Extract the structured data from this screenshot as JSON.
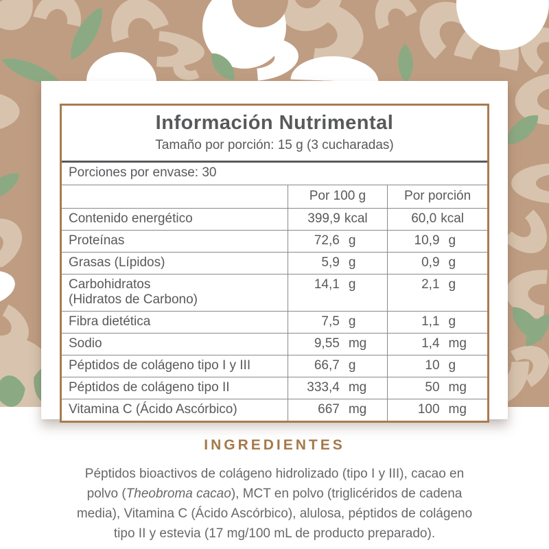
{
  "colors": {
    "background_tan": "#bf9d82",
    "shape_light_tan": "#d8c4ae",
    "shape_white": "#ffffff",
    "shape_green": "#8baa84",
    "table_border_brown": "#a87b4e",
    "heading_brown": "#a5794a",
    "text_gray": "#58595b",
    "line_gray": "#87898c",
    "card_white": "#ffffff"
  },
  "table": {
    "title": "Información Nutrimental",
    "serving_size": "Tamaño por porción: 15 g (3 cucharadas)",
    "servings_per_container": "Porciones por envase: 30",
    "columns": [
      "Por 100 g",
      "Por porción"
    ],
    "rows": [
      {
        "label": "Contenido energético",
        "label2": "",
        "per100_value": "399,9",
        "per100_unit": "kcal",
        "portion_value": "60,0",
        "portion_unit": "kcal",
        "center": true
      },
      {
        "label": "Proteínas",
        "label2": "",
        "per100_value": "72,6",
        "per100_unit": "g",
        "portion_value": "10,9",
        "portion_unit": "g",
        "center": false
      },
      {
        "label": "Grasas (Lípidos)",
        "label2": "",
        "per100_value": "5,9",
        "per100_unit": "g",
        "portion_value": "0,9",
        "portion_unit": "g",
        "center": false
      },
      {
        "label": "Carbohidratos",
        "label2": "(Hidratos de Carbono)",
        "per100_value": "14,1",
        "per100_unit": "g",
        "portion_value": "2,1",
        "portion_unit": "g",
        "center": false
      },
      {
        "label": "Fibra dietética",
        "label2": "",
        "per100_value": "7,5",
        "per100_unit": "g",
        "portion_value": "1,1",
        "portion_unit": "g",
        "center": false
      },
      {
        "label": "Sodio",
        "label2": "",
        "per100_value": "9,55",
        "per100_unit": "mg",
        "portion_value": "1,4",
        "portion_unit": "mg",
        "center": false
      },
      {
        "label": "Péptidos de colágeno tipo I y III",
        "label2": "",
        "per100_value": "66,7",
        "per100_unit": "g",
        "portion_value": "10",
        "portion_unit": "g",
        "center": false
      },
      {
        "label": "Péptidos de colágeno tipo II",
        "label2": "",
        "per100_value": "333,4",
        "per100_unit": "mg",
        "portion_value": "50",
        "portion_unit": "mg",
        "center": false
      },
      {
        "label": "Vitamina C (Ácido Ascórbico)",
        "label2": "",
        "per100_value": "667",
        "per100_unit": "mg",
        "portion_value": "100",
        "portion_unit": "mg",
        "center": false
      }
    ]
  },
  "ingredients": {
    "heading": "INGREDIENTES",
    "text_before_italic": "Péptidos bioactivos de colágeno hidrolizado (tipo I y III), cacao en\npolvo (",
    "italic": "Theobroma cacao",
    "text_after_italic": "), MCT en polvo (triglicéridos de cadena\nmedia), Vitamina C (Ácido Ascórbico), alulosa, péptidos de colágeno\ntipo II y estevia (17 mg/100 mL de producto preparado)."
  },
  "background_pattern": {
    "base": "#bf9d82",
    "palette": {
      "t": "#d8c4ae",
      "w": "#ffffff",
      "g": "#8baa84",
      "bg": "#bf9d82"
    },
    "shapes": [
      [
        "halfmoon",
        -18,
        -5,
        75,
        48,
        150,
        "t"
      ],
      [
        "arch",
        52,
        -10,
        70,
        42,
        12,
        "t"
      ],
      [
        "arch",
        155,
        -2,
        85,
        52,
        -18,
        "t"
      ],
      [
        "arch",
        238,
        40,
        52,
        68,
        95,
        "t"
      ],
      [
        "arch",
        245,
        84,
        45,
        30,
        -115,
        "t"
      ],
      [
        "arch",
        392,
        -15,
        100,
        60,
        -165,
        "t"
      ],
      [
        "arch",
        448,
        20,
        95,
        68,
        98,
        "t"
      ],
      [
        "arch",
        540,
        -10,
        62,
        42,
        -25,
        "t"
      ],
      [
        "arch",
        598,
        5,
        88,
        58,
        -48,
        "t"
      ],
      [
        "arch",
        668,
        25,
        95,
        68,
        14,
        "t"
      ],
      [
        "arch",
        735,
        -15,
        70,
        45,
        150,
        "t"
      ],
      [
        "arch",
        748,
        42,
        68,
        46,
        -55,
        "t"
      ],
      [
        "arch",
        -28,
        135,
        58,
        55,
        90,
        "t"
      ],
      [
        "arch",
        -30,
        320,
        72,
        52,
        60,
        "t"
      ],
      [
        "arch",
        -15,
        460,
        66,
        48,
        118,
        "t"
      ],
      [
        "circle",
        -45,
        492,
        125,
        125,
        0,
        "t"
      ],
      [
        "arch",
        742,
        118,
        75,
        58,
        -95,
        "t"
      ],
      [
        "arch",
        748,
        235,
        58,
        64,
        -90,
        "t"
      ],
      [
        "arch",
        742,
        320,
        62,
        50,
        135,
        "t"
      ],
      [
        "arch",
        730,
        398,
        72,
        58,
        -85,
        "t"
      ],
      [
        "arch",
        680,
        528,
        92,
        60,
        178,
        "t"
      ],
      [
        "arch",
        748,
        505,
        60,
        44,
        60,
        "t"
      ],
      [
        "circle",
        295,
        -22,
        122,
        122,
        0,
        "w"
      ],
      [
        "circle",
        338,
        -42,
        82,
        82,
        0,
        "bg"
      ],
      [
        "arch",
        372,
        52,
        64,
        62,
        85,
        "w"
      ],
      [
        "circle",
        665,
        -62,
        135,
        135,
        0,
        "w"
      ],
      [
        "halfmoon",
        126,
        76,
        102,
        42,
        0,
        "w"
      ],
      [
        "halfmoon",
        424,
        82,
        128,
        36,
        2,
        "w"
      ],
      [
        "halfmoon",
        -22,
        395,
        48,
        40,
        75,
        "w"
      ],
      [
        "petal",
        100,
        5,
        52,
        88,
        30,
        "g"
      ],
      [
        "petal",
        22,
        58,
        46,
        92,
        112,
        "g"
      ],
      [
        "petal",
        303,
        72,
        44,
        50,
        140,
        "g"
      ],
      [
        "petal",
        570,
        64,
        42,
        56,
        178,
        "g"
      ],
      [
        "petal",
        -20,
        240,
        46,
        62,
        55,
        "g"
      ],
      [
        "petal",
        736,
        158,
        50,
        62,
        48,
        "g"
      ],
      [
        "petal",
        742,
        440,
        52,
        64,
        -40,
        "g"
      ],
      [
        "petal",
        762,
        452,
        44,
        58,
        35,
        "g"
      ],
      [
        "petal",
        15,
        532,
        118,
        52,
        108,
        "g"
      ],
      [
        "petal",
        -30,
        548,
        90,
        44,
        80,
        "g"
      ]
    ]
  }
}
